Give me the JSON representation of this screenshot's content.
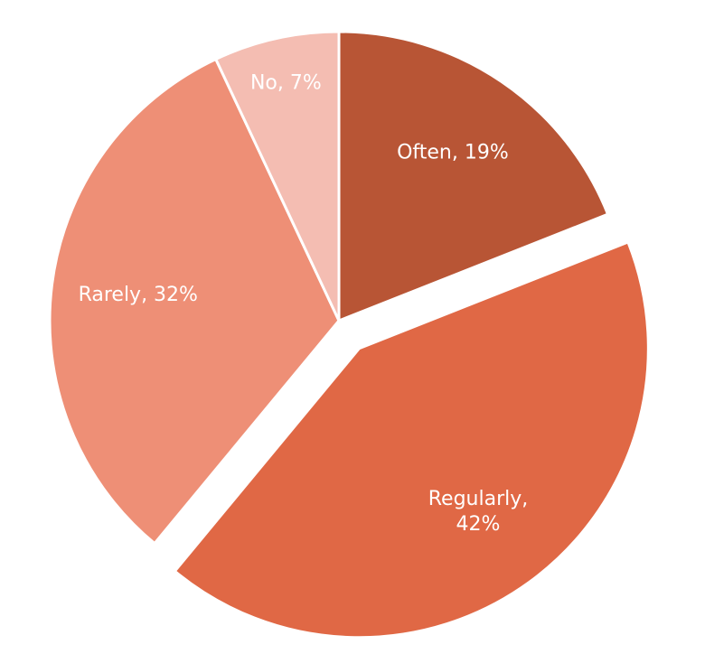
{
  "chart_data": {
    "type": "pie",
    "values": [
      19,
      42,
      32,
      7
    ],
    "value_labels": [
      "Often, 19%",
      "Regularly, 42%",
      "Rarely, 32%",
      "No, 7%"
    ],
    "colors": [
      "#b85535",
      "#e06845",
      "#ee8f76",
      "#f4bdb2"
    ],
    "explode": [
      false,
      true,
      false,
      false
    ]
  }
}
